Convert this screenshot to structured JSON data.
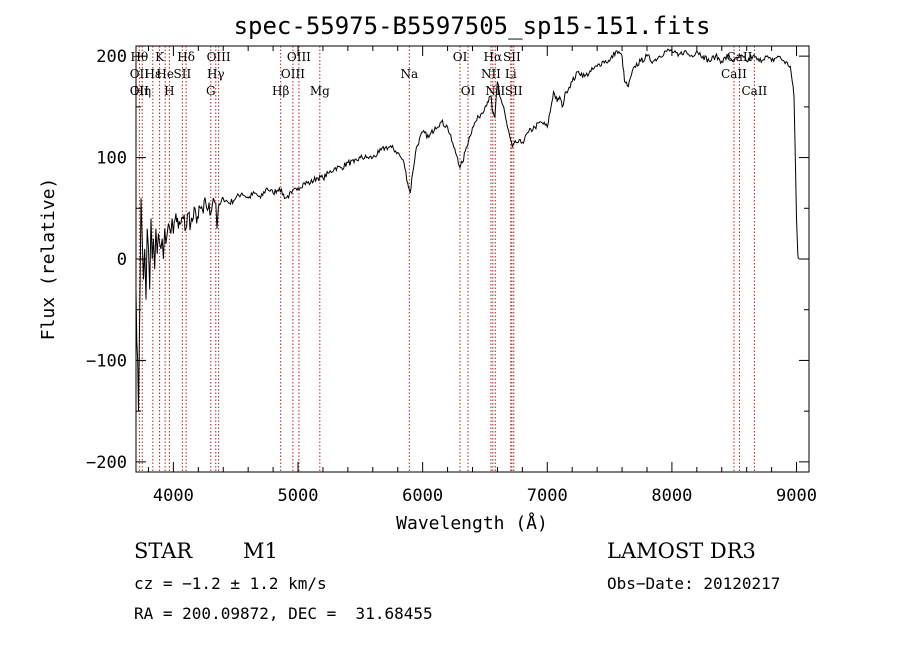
{
  "chart_data": {
    "type": "line",
    "title": "spec-55975-B5597505_sp15-151.fits",
    "xlabel": "Wavelength (Å)",
    "ylabel": "Flux (relative)",
    "xlim": [
      3700,
      9100
    ],
    "ylim": [
      -210,
      210
    ],
    "xticks": [
      4000,
      5000,
      6000,
      7000,
      8000,
      9000
    ],
    "yticks": [
      -200,
      -100,
      0,
      100,
      200
    ],
    "grid": false,
    "line_color": "#000000",
    "marker_color": "#b22222",
    "spectrum": {
      "x": [
        3700,
        3720,
        3740,
        3750,
        3760,
        3770,
        3780,
        3790,
        3800,
        3810,
        3820,
        3830,
        3840,
        3850,
        3860,
        3870,
        3880,
        3890,
        3900,
        3910,
        3920,
        3930,
        3940,
        3950,
        3960,
        3970,
        3980,
        3990,
        4000,
        4020,
        4040,
        4060,
        4080,
        4100,
        4120,
        4140,
        4160,
        4180,
        4200,
        4220,
        4240,
        4260,
        4280,
        4300,
        4320,
        4340,
        4350,
        4360,
        4380,
        4400,
        4450,
        4500,
        4550,
        4600,
        4650,
        4700,
        4750,
        4800,
        4850,
        4900,
        4950,
        5000,
        5050,
        5100,
        5150,
        5200,
        5250,
        5300,
        5350,
        5400,
        5450,
        5500,
        5550,
        5600,
        5650,
        5700,
        5750,
        5800,
        5850,
        5880,
        5900,
        5920,
        5950,
        6000,
        6050,
        6100,
        6150,
        6200,
        6250,
        6280,
        6300,
        6320,
        6350,
        6400,
        6450,
        6500,
        6520,
        6550,
        6560,
        6580,
        6600,
        6620,
        6650,
        6680,
        6700,
        6720,
        6750,
        6800,
        6850,
        6900,
        6950,
        7000,
        7030,
        7050,
        7080,
        7100,
        7120,
        7150,
        7200,
        7250,
        7300,
        7350,
        7400,
        7450,
        7500,
        7550,
        7600,
        7620,
        7650,
        7700,
        7750,
        7800,
        7850,
        7900,
        7950,
        8000,
        8050,
        8100,
        8150,
        8200,
        8250,
        8300,
        8350,
        8400,
        8450,
        8500,
        8550,
        8600,
        8650,
        8700,
        8750,
        8800,
        8850,
        8900,
        8950,
        8980,
        9000,
        9010,
        9015
      ],
      "y": [
        -30,
        -150,
        60,
        20,
        -20,
        10,
        -40,
        30,
        10,
        -30,
        40,
        0,
        20,
        -10,
        30,
        5,
        25,
        15,
        10,
        20,
        0,
        30,
        15,
        25,
        35,
        30,
        25,
        40,
        25,
        45,
        30,
        35,
        40,
        30,
        45,
        35,
        40,
        45,
        40,
        50,
        45,
        55,
        50,
        45,
        60,
        55,
        30,
        50,
        55,
        60,
        55,
        60,
        65,
        60,
        65,
        60,
        70,
        65,
        70,
        60,
        65,
        70,
        75,
        75,
        80,
        80,
        85,
        90,
        90,
        95,
        95,
        100,
        100,
        100,
        105,
        110,
        110,
        105,
        95,
        75,
        65,
        85,
        110,
        125,
        120,
        130,
        135,
        130,
        110,
        100,
        90,
        95,
        110,
        130,
        140,
        150,
        155,
        160,
        145,
        140,
        175,
        160,
        150,
        130,
        120,
        110,
        115,
        115,
        125,
        130,
        135,
        130,
        150,
        165,
        155,
        160,
        150,
        165,
        175,
        185,
        180,
        185,
        190,
        195,
        195,
        205,
        200,
        175,
        170,
        190,
        195,
        200,
        195,
        200,
        205,
        205,
        200,
        205,
        200,
        205,
        200,
        195,
        200,
        195,
        200,
        195,
        200,
        195,
        200,
        195,
        200,
        195,
        200,
        195,
        190,
        160,
        40,
        5,
        0
      ]
    },
    "line_markers": [
      {
        "x": 3727,
        "labels": [
          "Hθ",
          "OII",
          "OII"
        ],
        "rows": [
          0,
          1,
          2
        ]
      },
      {
        "x": 3750,
        "labels": [
          "Hη"
        ],
        "rows": [
          2
        ]
      },
      {
        "x": 3835,
        "labels": [
          "Hε"
        ],
        "rows": [
          1
        ]
      },
      {
        "x": 3889,
        "labels": [
          "K"
        ],
        "rows": [
          0
        ]
      },
      {
        "x": 3934,
        "labels": [
          "He"
        ],
        "rows": [
          1
        ]
      },
      {
        "x": 3968,
        "labels": [
          "H"
        ],
        "rows": [
          2
        ]
      },
      {
        "x": 4072,
        "labels": [
          "SII"
        ],
        "rows": [
          1
        ]
      },
      {
        "x": 4102,
        "labels": [
          "Hδ"
        ],
        "rows": [
          0
        ]
      },
      {
        "x": 4300,
        "labels": [
          "G"
        ],
        "rows": [
          2
        ]
      },
      {
        "x": 4340,
        "labels": [
          "Hγ"
        ],
        "rows": [
          1
        ]
      },
      {
        "x": 4363,
        "labels": [
          "OIII"
        ],
        "rows": [
          0
        ]
      },
      {
        "x": 4861,
        "labels": [
          "Hβ"
        ],
        "rows": [
          2
        ]
      },
      {
        "x": 4959,
        "labels": [
          "OIII"
        ],
        "rows": [
          1
        ]
      },
      {
        "x": 5007,
        "labels": [
          "OIII"
        ],
        "rows": [
          0
        ]
      },
      {
        "x": 5175,
        "labels": [
          "Mg"
        ],
        "rows": [
          2
        ]
      },
      {
        "x": 5893,
        "labels": [
          "Na"
        ],
        "rows": [
          1
        ]
      },
      {
        "x": 6300,
        "labels": [
          "OI"
        ],
        "rows": [
          0
        ]
      },
      {
        "x": 6364,
        "labels": [
          "OI"
        ],
        "rows": [
          2
        ]
      },
      {
        "x": 6548,
        "labels": [
          "NII"
        ],
        "rows": [
          1
        ]
      },
      {
        "x": 6563,
        "labels": [
          "Hα"
        ],
        "rows": [
          0
        ]
      },
      {
        "x": 6583,
        "labels": [
          "NII"
        ],
        "rows": [
          2
        ]
      },
      {
        "x": 6707,
        "labels": [
          "Li"
        ],
        "rows": [
          1
        ]
      },
      {
        "x": 6716,
        "labels": [
          "SII"
        ],
        "rows": [
          0
        ]
      },
      {
        "x": 6731,
        "labels": [
          "SII"
        ],
        "rows": [
          2
        ]
      },
      {
        "x": 8498,
        "labels": [
          "CaII"
        ],
        "rows": [
          1
        ]
      },
      {
        "x": 8542,
        "labels": [
          "CaII"
        ],
        "rows": [
          0
        ]
      },
      {
        "x": 8662,
        "labels": [
          "CaII"
        ],
        "rows": [
          2
        ]
      }
    ]
  },
  "info": {
    "class_label": "STAR",
    "subclass": "M1",
    "survey": "LAMOST DR3",
    "cz": "cz = −1.2 ± 1.2 km/s",
    "obs_date": "Obs−Date: 20120217",
    "coords": "RA = 200.09872, DEC =  31.68455"
  }
}
